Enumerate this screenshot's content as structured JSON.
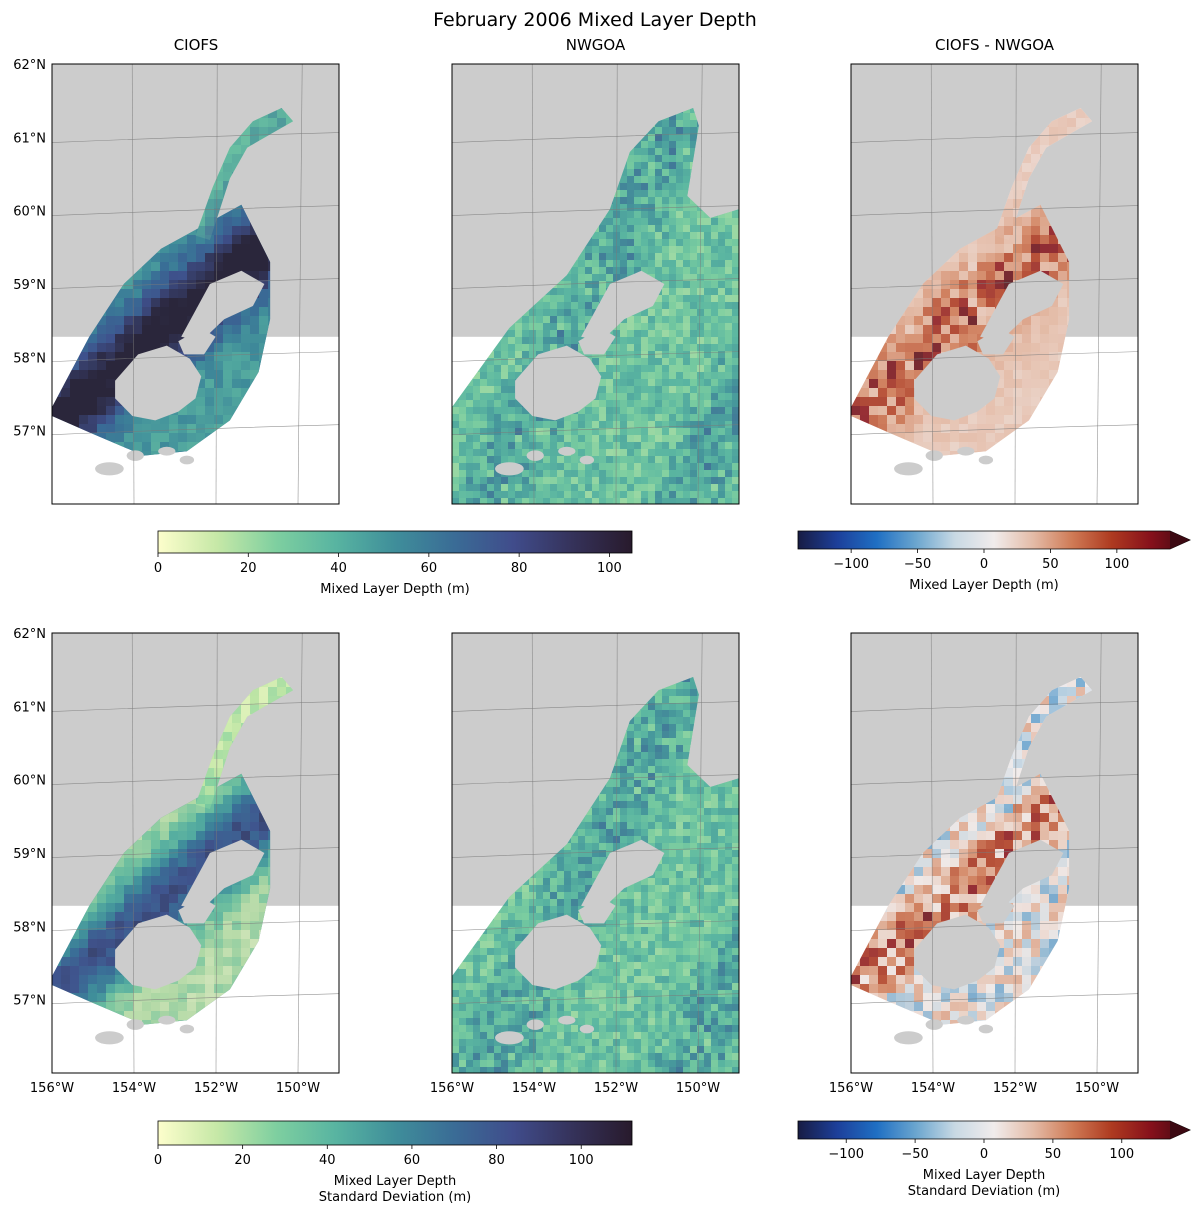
{
  "figure": {
    "title": "February 2006 Mixed Layer Depth"
  },
  "chart_data": [
    {
      "type": "heatmap",
      "panel": "row1-col1",
      "title": "CIOFS",
      "field": "mean",
      "colormap": "deep",
      "lon_range": [
        -156,
        -149
      ],
      "lat_range": [
        56,
        62
      ],
      "lat_ticks": [
        "62°N",
        "61°N",
        "60°N",
        "59°N",
        "58°N",
        "57°N"
      ],
      "lon_ticks": [],
      "vmin": 0,
      "vmax": 105
    },
    {
      "type": "heatmap",
      "panel": "row1-col2",
      "title": "NWGOA",
      "field": "mean",
      "colormap": "deep",
      "lon_range": [
        -156,
        -149
      ],
      "lat_range": [
        56,
        62
      ],
      "lat_ticks": [],
      "lon_ticks": [],
      "vmin": 0,
      "vmax": 105
    },
    {
      "type": "heatmap",
      "panel": "row1-col3",
      "title": "CIOFS - NWGOA",
      "field": "mean difference",
      "colormap": "balance",
      "lon_range": [
        -156,
        -149
      ],
      "lat_range": [
        56,
        62
      ],
      "lat_ticks": [],
      "lon_ticks": [],
      "vmin": -140,
      "vmax": 140
    },
    {
      "type": "heatmap",
      "panel": "row2-col1",
      "title": "",
      "field": "standard deviation",
      "colormap": "deep",
      "lon_range": [
        -156,
        -149
      ],
      "lat_range": [
        56,
        62
      ],
      "lat_ticks": [
        "62°N",
        "61°N",
        "60°N",
        "59°N",
        "58°N",
        "57°N"
      ],
      "lon_ticks": [
        "156°W",
        "154°W",
        "152°W",
        "150°W"
      ],
      "vmin": 0,
      "vmax": 112
    },
    {
      "type": "heatmap",
      "panel": "row2-col2",
      "title": "",
      "field": "standard deviation",
      "colormap": "deep",
      "lon_range": [
        -156,
        -149
      ],
      "lat_range": [
        56,
        62
      ],
      "lat_ticks": [],
      "lon_ticks": [
        "156°W",
        "154°W",
        "152°W",
        "150°W"
      ],
      "vmin": 0,
      "vmax": 112
    },
    {
      "type": "heatmap",
      "panel": "row2-col3",
      "title": "",
      "field": "standard deviation difference",
      "colormap": "balance",
      "lon_range": [
        -156,
        -149
      ],
      "lat_range": [
        56,
        62
      ],
      "lat_ticks": [],
      "lon_ticks": [
        "156°W",
        "154°W",
        "152°W",
        "150°W"
      ],
      "vmin": -135,
      "vmax": 135
    }
  ],
  "colorbars": [
    {
      "id": "cb1",
      "colormap": "deep",
      "min": 0,
      "max": 105,
      "ticks": [
        0,
        20,
        40,
        60,
        80,
        100
      ],
      "label_lines": [
        "Mixed Layer Depth (m)"
      ],
      "extend": "neither"
    },
    {
      "id": "cb2",
      "colormap": "balance",
      "min": -140,
      "max": 140,
      "ticks": [
        -100,
        -50,
        0,
        50,
        100
      ],
      "tick_labels": [
        "−100",
        "−50",
        "0",
        "50",
        "100"
      ],
      "label_lines": [
        "Mixed Layer Depth (m)"
      ],
      "extend": "max"
    },
    {
      "id": "cb3",
      "colormap": "deep",
      "min": 0,
      "max": 112,
      "ticks": [
        0,
        20,
        40,
        60,
        80,
        100
      ],
      "label_lines": [
        "Mixed Layer Depth",
        "Standard Deviation (m)"
      ],
      "extend": "neither"
    },
    {
      "id": "cb4",
      "colormap": "balance",
      "min": -135,
      "max": 135,
      "ticks": [
        -100,
        -50,
        0,
        50,
        100
      ],
      "tick_labels": [
        "−100",
        "−50",
        "0",
        "50",
        "100"
      ],
      "label_lines": [
        "Mixed Layer Depth",
        "Standard Deviation (m)"
      ],
      "extend": "max"
    }
  ],
  "colors": {
    "land": "#cccccc",
    "gridline": "#7a7a7a",
    "deep_cmap": [
      "#fdfecc",
      "#c6e8a7",
      "#7ecfa0",
      "#58b4a1",
      "#3f8e9a",
      "#3a6c96",
      "#404c8b",
      "#35325a",
      "#281a2c"
    ],
    "balance_cmap": [
      "#181c43",
      "#1d3f9a",
      "#1f6fc3",
      "#6aa5cf",
      "#c8d9e4",
      "#f1ecec",
      "#e4bba7",
      "#cf7a55",
      "#ae3a20",
      "#86101b",
      "#3c0912"
    ]
  }
}
